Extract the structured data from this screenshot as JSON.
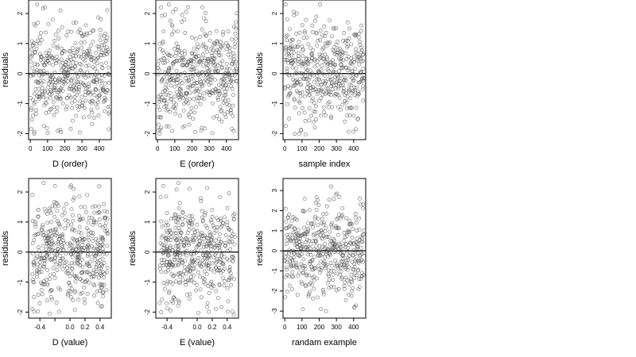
{
  "chart_data": [
    {
      "type": "scatter",
      "xlabel": "D (order)",
      "ylabel": "residuals",
      "xlim": [
        -10,
        470
      ],
      "ylim": [
        -2.2,
        2.45
      ],
      "xticks": [
        0,
        100,
        200,
        300,
        400
      ],
      "xtick_labels": [
        "0",
        "100",
        "200",
        "300",
        "400"
      ],
      "yticks": [
        -2,
        -1,
        0,
        1,
        2
      ],
      "ytick_labels": [
        "-2",
        "-1",
        "0",
        "1",
        "2"
      ],
      "reference_line_y": 0,
      "points": [
        [
          6,
          -1.85
        ],
        [
          15,
          -1.4
        ],
        [
          22,
          -2.0
        ],
        [
          30,
          1.6
        ],
        [
          40,
          2.3
        ],
        [
          55,
          1.0
        ],
        [
          70,
          -0.6
        ],
        [
          85,
          2.2
        ],
        [
          100,
          0.5
        ],
        [
          115,
          -1.2
        ],
        [
          130,
          1.8
        ],
        [
          145,
          -0.2
        ],
        [
          160,
          0.9
        ],
        [
          175,
          2.1
        ],
        [
          190,
          -1.0
        ],
        [
          205,
          0.3
        ],
        [
          220,
          1.4
        ],
        [
          235,
          -0.8
        ],
        [
          250,
          0.6
        ],
        [
          265,
          1.7
        ],
        [
          280,
          -1.2
        ],
        [
          295,
          0.1
        ],
        [
          310,
          1.3
        ],
        [
          325,
          -0.5
        ],
        [
          340,
          0.8
        ],
        [
          355,
          -1.0
        ],
        [
          370,
          0.4
        ],
        [
          385,
          -0.3
        ],
        [
          400,
          -0.1
        ],
        [
          415,
          0.7
        ],
        [
          430,
          -0.9
        ],
        [
          445,
          1.2
        ],
        [
          455,
          0.2
        ]
      ],
      "n_points": 460,
      "seed": 11
    },
    {
      "type": "scatter",
      "xlabel": "E (order)",
      "ylabel": "residuals",
      "xlim": [
        -10,
        470
      ],
      "ylim": [
        -2.2,
        2.45
      ],
      "xticks": [
        0,
        100,
        200,
        300,
        400
      ],
      "xtick_labels": [
        "0",
        "100",
        "200",
        "300",
        "400"
      ],
      "yticks": [
        -2,
        -1,
        0,
        1,
        2
      ],
      "ytick_labels": [
        "-2",
        "-1",
        "0",
        "1",
        "2"
      ],
      "reference_line_y": 0,
      "points": [
        [
          5,
          -1.7
        ],
        [
          12,
          -2.0
        ],
        [
          20,
          2.2
        ],
        [
          35,
          1.4
        ],
        [
          50,
          -0.7
        ],
        [
          65,
          2.3
        ],
        [
          80,
          0.2
        ],
        [
          95,
          -1.1
        ],
        [
          110,
          1.0
        ],
        [
          125,
          -0.4
        ],
        [
          140,
          0.7
        ],
        [
          155,
          1.8
        ],
        [
          170,
          -0.9
        ],
        [
          185,
          0.4
        ],
        [
          200,
          1.2
        ],
        [
          215,
          -1.3
        ],
        [
          230,
          0.8
        ],
        [
          245,
          -0.2
        ],
        [
          260,
          2.2
        ],
        [
          275,
          0.5
        ],
        [
          290,
          -0.6
        ],
        [
          305,
          1.1
        ],
        [
          320,
          -1.0
        ],
        [
          335,
          0.3
        ],
        [
          350,
          -0.8
        ],
        [
          365,
          0.6
        ],
        [
          380,
          1.3
        ],
        [
          395,
          -0.4
        ],
        [
          410,
          0.9
        ],
        [
          425,
          -1.2
        ],
        [
          440,
          0.4
        ],
        [
          455,
          1.5
        ]
      ],
      "n_points": 460,
      "seed": 23
    },
    {
      "type": "scatter",
      "xlabel": "sample index",
      "ylabel": "residuals",
      "xlim": [
        -10,
        470
      ],
      "ylim": [
        -2.2,
        2.45
      ],
      "xticks": [
        0,
        100,
        200,
        300,
        400
      ],
      "xtick_labels": [
        "0",
        "100",
        "200",
        "300",
        "400"
      ],
      "yticks": [
        -2,
        -1,
        0,
        1,
        2
      ],
      "ytick_labels": [
        "-2",
        "-1",
        "0",
        "1",
        "2"
      ],
      "reference_line_y": 0,
      "points": [
        [
          5,
          2.3
        ],
        [
          15,
          1.8
        ],
        [
          25,
          -1.5
        ],
        [
          40,
          0.6
        ],
        [
          55,
          -0.4
        ],
        [
          70,
          2.0
        ],
        [
          85,
          -2.0
        ],
        [
          100,
          0.9
        ],
        [
          115,
          -1.3
        ],
        [
          130,
          1.2
        ],
        [
          145,
          -0.1
        ],
        [
          160,
          1.6
        ],
        [
          175,
          -1.8
        ],
        [
          190,
          0.4
        ],
        [
          205,
          2.3
        ],
        [
          220,
          -0.7
        ],
        [
          235,
          1.0
        ],
        [
          250,
          -1.0
        ],
        [
          265,
          0.3
        ],
        [
          280,
          1.5
        ],
        [
          295,
          -0.5
        ],
        [
          310,
          0.8
        ],
        [
          325,
          -1.2
        ],
        [
          340,
          0.2
        ],
        [
          355,
          1.1
        ],
        [
          370,
          -0.6
        ],
        [
          385,
          0.5
        ],
        [
          400,
          -1.4
        ],
        [
          415,
          1.3
        ],
        [
          430,
          -0.3
        ],
        [
          445,
          1.6
        ],
        [
          455,
          -0.9
        ]
      ],
      "n_points": 460,
      "seed": 37
    },
    {
      "type": "scatter",
      "xlabel": "D (value)",
      "ylabel": "residuals",
      "xlim": [
        -0.55,
        0.55
      ],
      "ylim": [
        -2.2,
        2.45
      ],
      "xticks": [
        -0.4,
        -0.2,
        0.0,
        0.2,
        0.4
      ],
      "xtick_labels": [
        "-0.4",
        "0.0",
        "0.2",
        "0.4"
      ],
      "xtick_label_values": [
        -0.4,
        0.0,
        0.2,
        0.4
      ],
      "yticks": [
        -2,
        -1,
        0,
        1,
        2
      ],
      "ytick_labels": [
        "-2",
        "-1",
        "0",
        "1",
        "2"
      ],
      "reference_line_y": 0,
      "points": [
        [
          -0.5,
          -1.9
        ],
        [
          -0.48,
          -1.5
        ],
        [
          -0.5,
          1.9
        ],
        [
          -0.42,
          1.4
        ],
        [
          -0.35,
          2.3
        ],
        [
          -0.3,
          -0.6
        ],
        [
          -0.25,
          1.0
        ],
        [
          -0.2,
          2.2
        ],
        [
          -0.15,
          -1.2
        ],
        [
          -0.1,
          0.5
        ],
        [
          -0.05,
          1.6
        ],
        [
          0.0,
          -0.8
        ],
        [
          0.05,
          2.1
        ],
        [
          0.1,
          -0.3
        ],
        [
          0.15,
          1.1
        ],
        [
          0.2,
          -1.0
        ],
        [
          0.25,
          0.4
        ],
        [
          0.3,
          1.5
        ],
        [
          0.35,
          -0.5
        ],
        [
          0.4,
          0.9
        ],
        [
          0.45,
          -1.1
        ],
        [
          0.5,
          0.6
        ]
      ],
      "n_points": 460,
      "seed": 41
    },
    {
      "type": "scatter",
      "xlabel": "E (value)",
      "ylabel": "residuals",
      "xlim": [
        -0.55,
        0.55
      ],
      "ylim": [
        -2.2,
        2.45
      ],
      "xticks": [
        -0.4,
        -0.2,
        0.0,
        0.2,
        0.4
      ],
      "xtick_labels": [
        "-0.4",
        "0.0",
        "0.2",
        "0.4"
      ],
      "xtick_label_values": [
        -0.4,
        0.0,
        0.2,
        0.4
      ],
      "yticks": [
        -2,
        -1,
        0,
        1,
        2
      ],
      "ytick_labels": [
        "-2",
        "-1",
        "0",
        "1",
        "2"
      ],
      "reference_line_y": 0,
      "points": [
        [
          -0.5,
          -1.7
        ],
        [
          -0.48,
          -2.0
        ],
        [
          -0.45,
          2.2
        ],
        [
          -0.4,
          1.3
        ],
        [
          -0.32,
          -0.8
        ],
        [
          -0.25,
          2.3
        ],
        [
          -0.2,
          0.4
        ],
        [
          -0.15,
          -1.0
        ],
        [
          -0.1,
          1.2
        ],
        [
          -0.05,
          -0.3
        ],
        [
          0.0,
          0.7
        ],
        [
          0.05,
          1.7
        ],
        [
          0.1,
          -0.9
        ],
        [
          0.15,
          0.3
        ],
        [
          0.2,
          1.4
        ],
        [
          0.25,
          -1.3
        ],
        [
          0.3,
          0.6
        ],
        [
          0.35,
          -0.4
        ],
        [
          0.4,
          1.0
        ],
        [
          0.45,
          -1.1
        ],
        [
          0.5,
          0.5
        ]
      ],
      "n_points": 460,
      "seed": 53
    },
    {
      "type": "scatter",
      "xlabel": "randam example",
      "ylabel": "residuals",
      "xlim": [
        -10,
        470
      ],
      "ylim": [
        -3.35,
        3.6
      ],
      "xticks": [
        0,
        100,
        200,
        300,
        400
      ],
      "xtick_labels": [
        "0",
        "100",
        "200",
        "300",
        "400"
      ],
      "yticks": [
        -3,
        -2,
        -1,
        0,
        1,
        2,
        3
      ],
      "ytick_labels": [
        "-3",
        "-2",
        "-1",
        "0",
        "1",
        "2",
        "3"
      ],
      "reference_line_y": 0,
      "points": [
        [
          5,
          2.1
        ],
        [
          15,
          -1.2
        ],
        [
          30,
          0.8
        ],
        [
          45,
          -0.5
        ],
        [
          60,
          1.6
        ],
        [
          75,
          -2.2
        ],
        [
          90,
          0.3
        ],
        [
          105,
          2.0
        ],
        [
          120,
          -0.9
        ],
        [
          135,
          1.1
        ],
        [
          150,
          -1.6
        ],
        [
          165,
          0.5
        ],
        [
          180,
          2.4
        ],
        [
          195,
          -0.2
        ],
        [
          210,
          -2.9
        ],
        [
          225,
          1.3
        ],
        [
          240,
          -3.0
        ],
        [
          255,
          0.7
        ],
        [
          270,
          3.2
        ],
        [
          285,
          -1.0
        ],
        [
          300,
          0.2
        ],
        [
          315,
          1.8
        ],
        [
          330,
          -1.4
        ],
        [
          345,
          0.9
        ],
        [
          360,
          -0.6
        ],
        [
          375,
          1.5
        ],
        [
          390,
          -2.0
        ],
        [
          405,
          -2.8
        ],
        [
          420,
          0.4
        ],
        [
          435,
          2.6
        ],
        [
          450,
          -1.1
        ]
      ],
      "n_points": 460,
      "seed": 67
    }
  ]
}
